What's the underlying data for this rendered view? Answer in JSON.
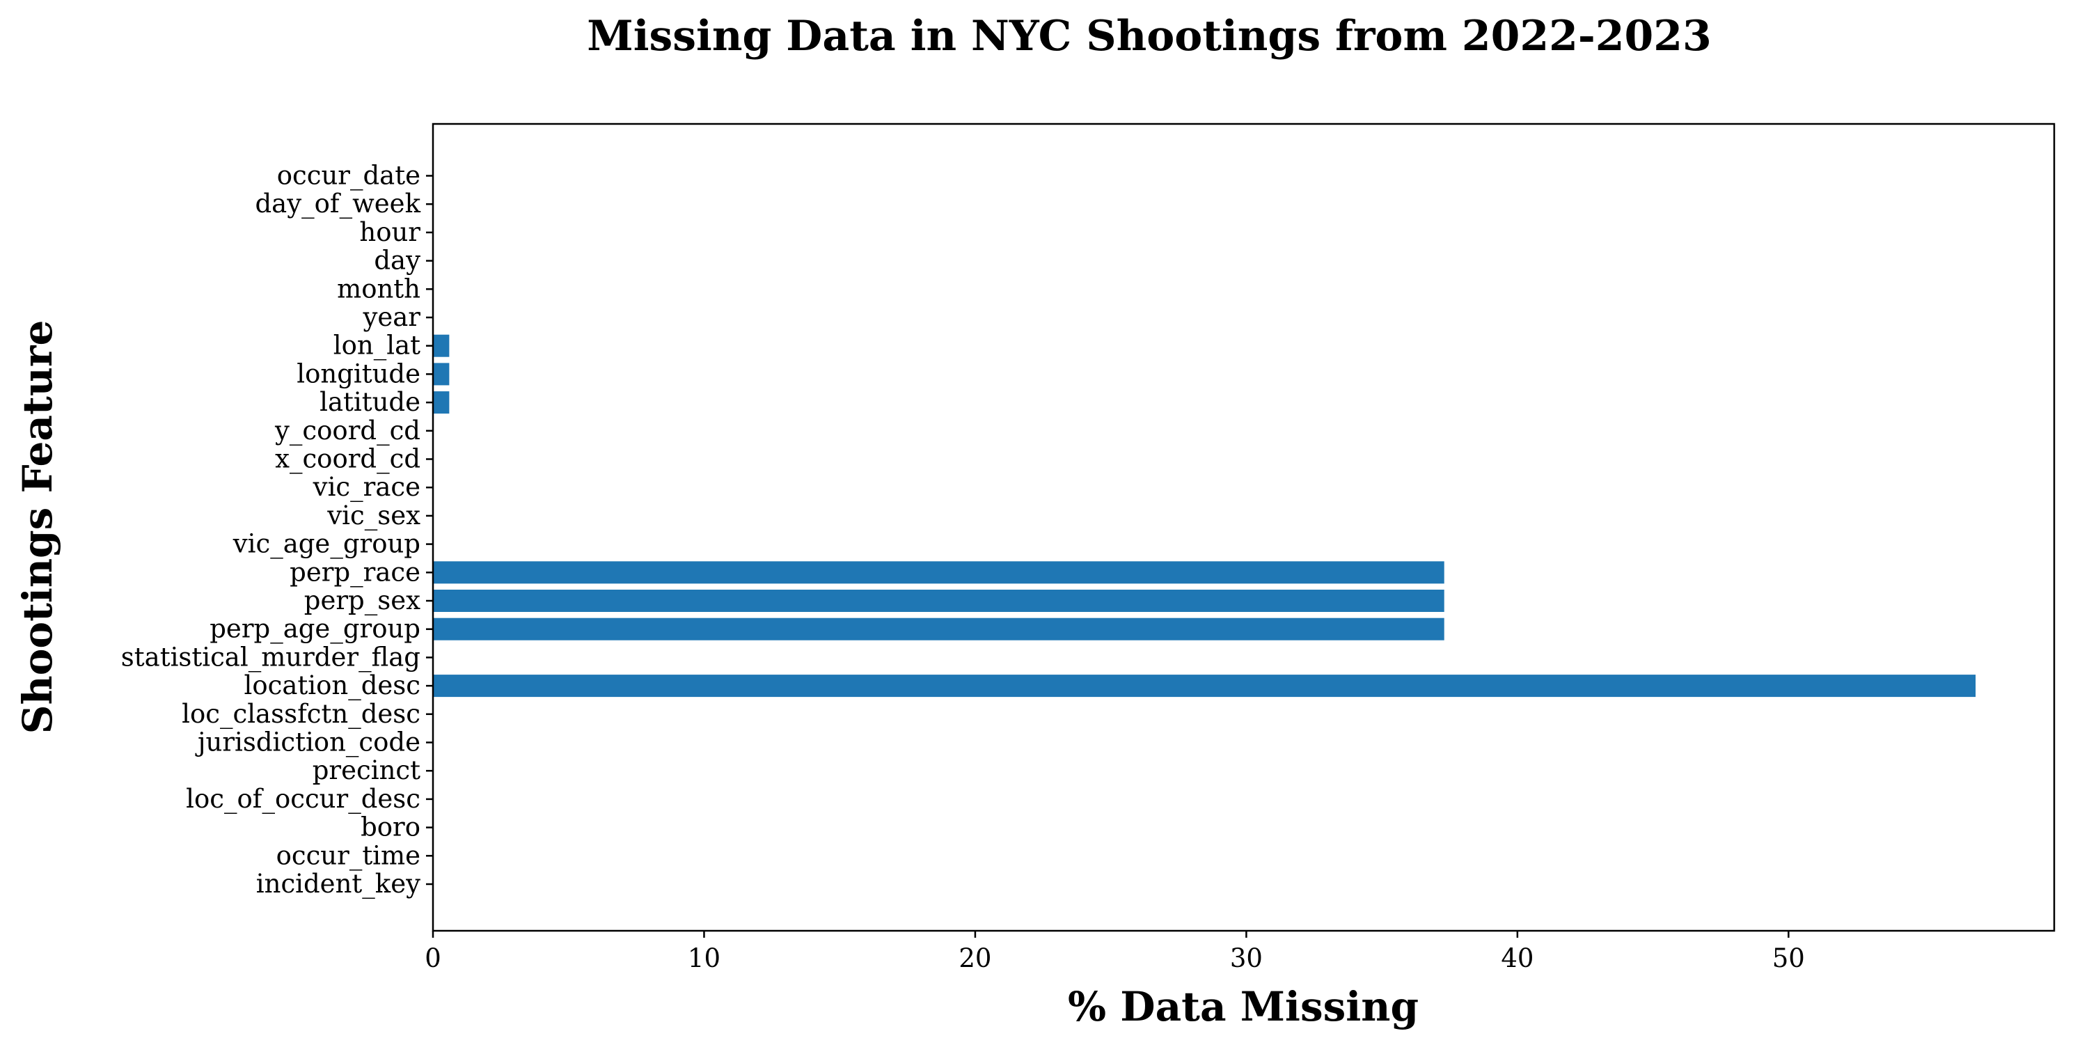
{
  "chart_data": {
    "type": "bar",
    "orientation": "horizontal",
    "title": "Missing Data in NYC Shootings from 2022-2023",
    "xlabel": "% Data Missing",
    "ylabel": "Shootings Feature",
    "categories": [
      "incident_key",
      "occur_time",
      "boro",
      "loc_of_occur_desc",
      "precinct",
      "jurisdiction_code",
      "loc_classfctn_desc",
      "location_desc",
      "statistical_murder_flag",
      "perp_age_group",
      "perp_sex",
      "perp_race",
      "vic_age_group",
      "vic_sex",
      "vic_race",
      "x_coord_cd",
      "y_coord_cd",
      "latitude",
      "longitude",
      "lon_lat",
      "year",
      "month",
      "day",
      "hour",
      "day_of_week",
      "occur_date"
    ],
    "values": [
      0,
      0,
      0,
      0,
      0,
      0,
      0,
      56.9,
      0,
      37.3,
      37.3,
      37.3,
      0,
      0,
      0,
      0,
      0,
      0.6,
      0.6,
      0.6,
      0,
      0,
      0,
      0,
      0,
      0
    ],
    "xlim": [
      0,
      59.8
    ],
    "xticks": [
      0,
      10,
      20,
      30,
      40,
      50
    ],
    "grid": false,
    "bar_color": "#1f77b4"
  }
}
